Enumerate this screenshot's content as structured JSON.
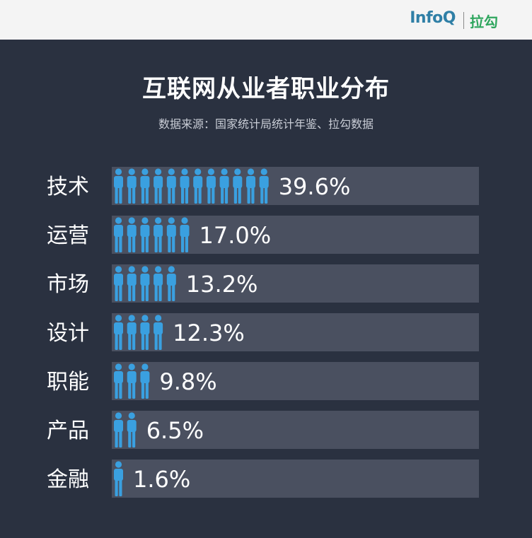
{
  "brand": {
    "infoq": "InfoQ",
    "lagou": "拉勾"
  },
  "chart_data": {
    "type": "bar",
    "title": "互联网从业者职业分布",
    "subtitle": "数据来源：国家统计局统计年鉴、拉勾数据",
    "categories": [
      "技术",
      "运营",
      "市场",
      "设计",
      "职能",
      "产品",
      "金融"
    ],
    "values": [
      39.6,
      17.0,
      13.2,
      12.3,
      9.8,
      6.5,
      1.6
    ],
    "value_labels": [
      "39.6%",
      "17.0%",
      "13.2%",
      "12.3%",
      "9.8%",
      "6.5%",
      "1.6%"
    ],
    "person_icon_counts": [
      12,
      6,
      5,
      4,
      3,
      2,
      1
    ],
    "colors": {
      "background": "#2a3140",
      "track": "#4a5060",
      "icon": "#3aa0e0",
      "text": "#ffffff"
    }
  }
}
